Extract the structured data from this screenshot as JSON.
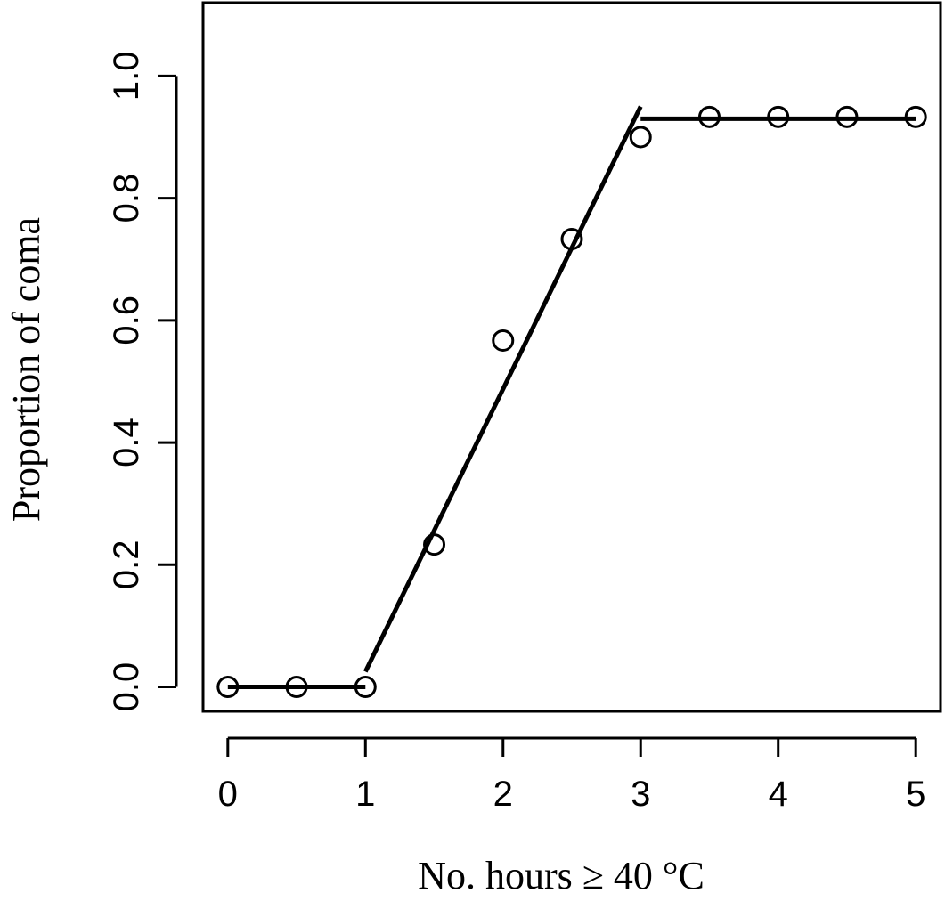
{
  "chart_data": {
    "type": "scatter",
    "title": "",
    "xlabel": "No. hours ≥ 40 °C",
    "ylabel": "Proportion of coma",
    "xlim": [
      -0.18,
      5.18
    ],
    "ylim": [
      -0.04,
      1.12
    ],
    "x_ticks": [
      0,
      1,
      2,
      3,
      4,
      5
    ],
    "x_tick_labels": [
      "0",
      "1",
      "2",
      "3",
      "4",
      "5"
    ],
    "y_ticks": [
      0.0,
      0.2,
      0.4,
      0.6,
      0.8,
      1.0
    ],
    "y_tick_labels": [
      "0.0",
      "0.2",
      "0.4",
      "0.6",
      "0.8",
      "1.0"
    ],
    "grid": false,
    "points": {
      "x": [
        0,
        0.5,
        1,
        1.5,
        2,
        2.5,
        3,
        3.5,
        4,
        4.5,
        5
      ],
      "y": [
        0,
        0,
        0,
        0.233,
        0.567,
        0.733,
        0.9,
        0.933,
        0.933,
        0.933,
        0.933
      ],
      "marker": "open-circle",
      "color": "#000000"
    },
    "fit_segments": [
      {
        "x": [
          0,
          1
        ],
        "y": [
          0,
          0
        ]
      },
      {
        "x": [
          1,
          3
        ],
        "y": [
          0.025,
          0.95
        ]
      },
      {
        "x": [
          3,
          5
        ],
        "y": [
          0.93,
          0.93
        ]
      }
    ]
  }
}
